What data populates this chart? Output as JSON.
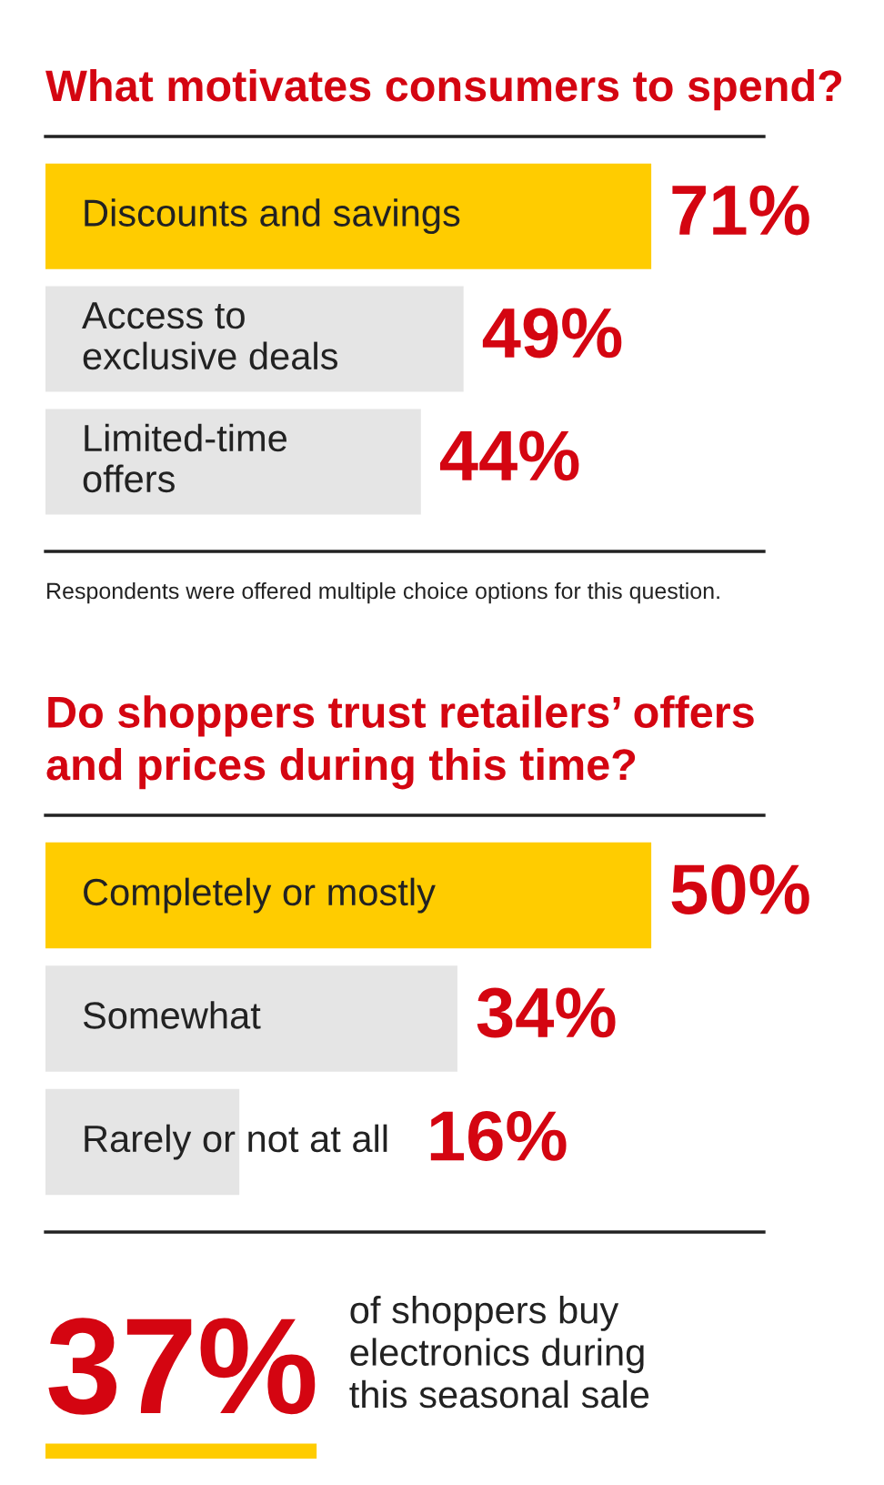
{
  "chart_data": [
    {
      "type": "bar",
      "orientation": "horizontal",
      "title": "What motivates consumers to spend?",
      "categories": [
        "Discounts and savings",
        "Access to\nexclusive deals",
        "Limited-time\noffers"
      ],
      "values": [
        71,
        49,
        44
      ],
      "colors": [
        "#ffcc00",
        "#e5e5e5",
        "#e5e5e5"
      ],
      "value_labels": [
        "71%",
        "49%",
        "44%"
      ],
      "annotations": [
        "Respondents were offered multiple choice options for this question."
      ]
    },
    {
      "type": "bar",
      "orientation": "horizontal",
      "title": "Do shoppers trust retailers’ offers\nand prices during this time?",
      "categories": [
        "Completely or mostly",
        "Somewhat",
        "Rarely or not at all"
      ],
      "values": [
        50,
        34,
        16
      ],
      "colors": [
        "#ffcc00",
        "#e5e5e5",
        "#e5e5e5"
      ],
      "value_labels": [
        "50%",
        "34%",
        "16%"
      ]
    },
    {
      "type": "other",
      "annotations": [
        "37%",
        "of shoppers buy\nelectronics during\nthis seasonal sale"
      ]
    }
  ]
}
